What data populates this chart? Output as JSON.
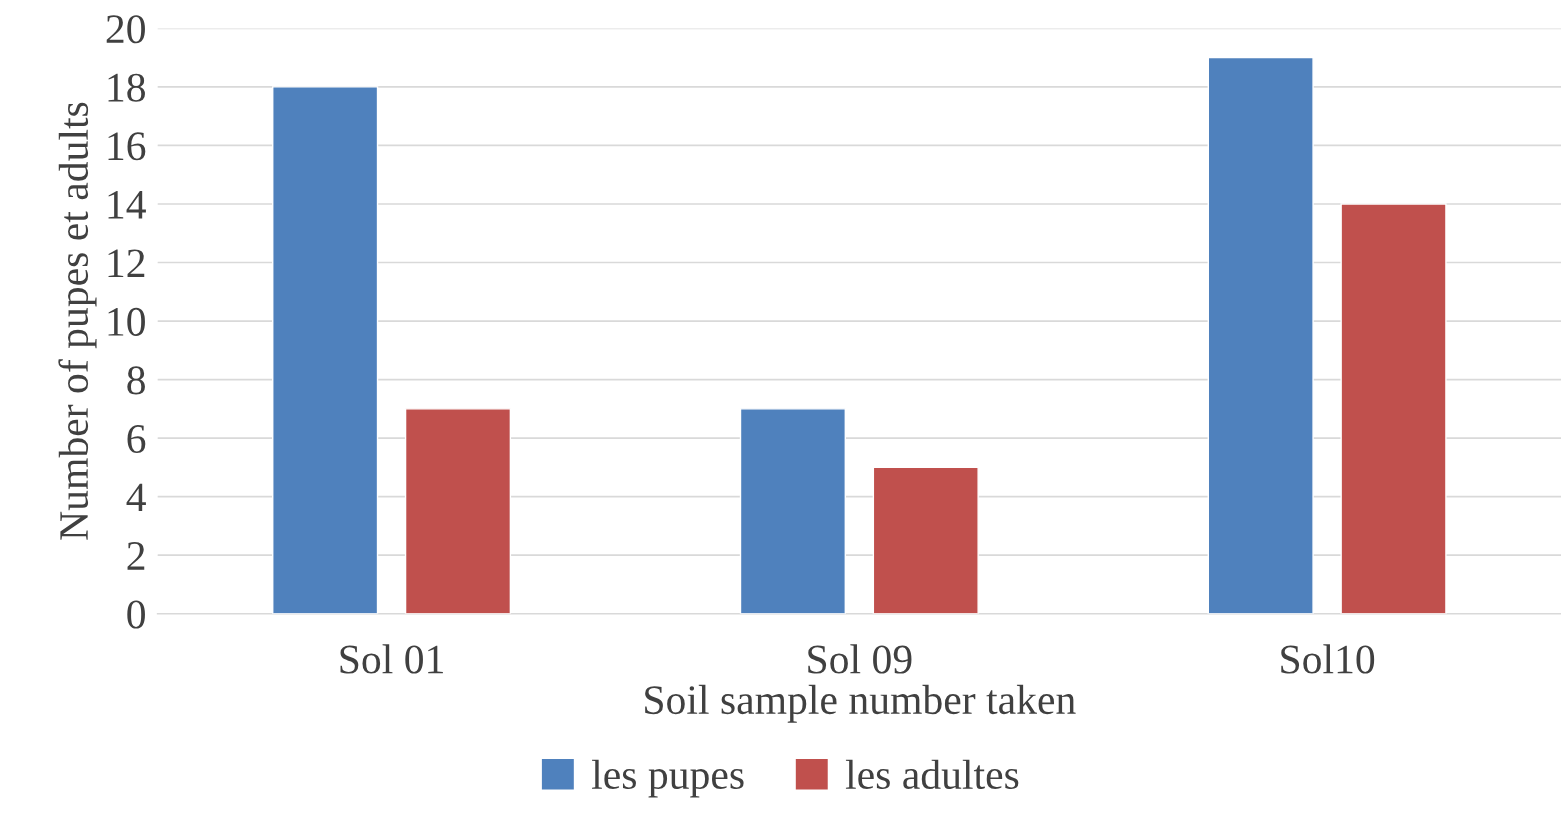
{
  "chart_data": {
    "type": "bar",
    "xlabel": "Soil sample number taken",
    "ylabel": "Number of pupes et adults",
    "categories": [
      "Sol 01",
      "Sol 09",
      "Sol10"
    ],
    "series": [
      {
        "name": "les pupes",
        "color": "#4f81bd",
        "values": [
          18,
          7,
          19
        ]
      },
      {
        "name": "les adultes",
        "color": "#c0504d",
        "values": [
          7,
          5,
          14
        ]
      }
    ],
    "ylim": [
      0,
      20
    ],
    "yticks": [
      0,
      2,
      4,
      6,
      8,
      10,
      12,
      14,
      16,
      18,
      20
    ],
    "grid": "y",
    "legend": "bottom"
  }
}
